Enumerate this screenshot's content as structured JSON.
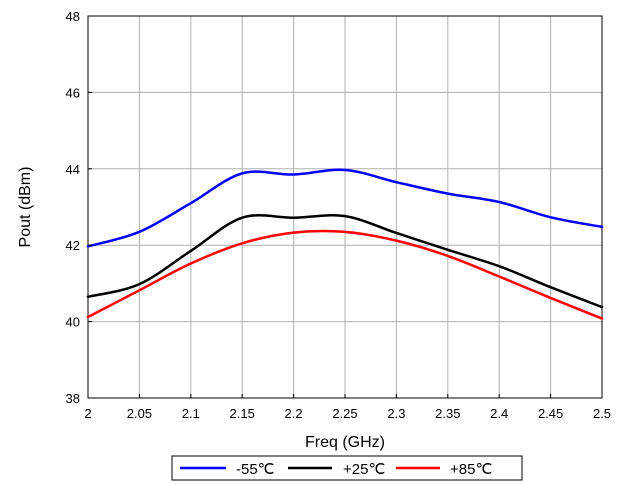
{
  "chart_data": {
    "type": "line",
    "title": "",
    "xlabel": "Freq (GHz)",
    "ylabel": "Pout (dBm)",
    "xlim": [
      2.0,
      2.5
    ],
    "ylim": [
      38,
      48
    ],
    "xticks": [
      2.0,
      2.05,
      2.1,
      2.15,
      2.2,
      2.25,
      2.3,
      2.35,
      2.4,
      2.45,
      2.5
    ],
    "xtick_labels": [
      "2",
      "2.05",
      "2.1",
      "2.15",
      "2.2",
      "2.25",
      "2.3",
      "2.35",
      "2.4",
      "2.45",
      "2.5"
    ],
    "yticks": [
      38,
      40,
      42,
      44,
      46,
      48
    ],
    "ytick_labels": [
      "38",
      "40",
      "42",
      "44",
      "46",
      "48"
    ],
    "grid": true,
    "legend_position": "bottom",
    "x": [
      2.0,
      2.05,
      2.1,
      2.15,
      2.2,
      2.25,
      2.3,
      2.35,
      2.4,
      2.45,
      2.5
    ],
    "series": [
      {
        "name": "-55℃",
        "color": "#0000ff",
        "values": [
          41.97,
          42.35,
          43.1,
          43.88,
          43.85,
          43.97,
          43.65,
          43.35,
          43.13,
          42.73,
          42.48
        ]
      },
      {
        "name": "+25℃",
        "color": "#000000",
        "values": [
          40.65,
          40.98,
          41.85,
          42.72,
          42.72,
          42.76,
          42.32,
          41.88,
          41.45,
          40.9,
          40.38
        ]
      },
      {
        "name": "+85℃",
        "color": "#ff0000",
        "values": [
          40.12,
          40.82,
          41.52,
          42.05,
          42.33,
          42.35,
          42.12,
          41.72,
          41.18,
          40.62,
          40.08
        ]
      }
    ]
  }
}
